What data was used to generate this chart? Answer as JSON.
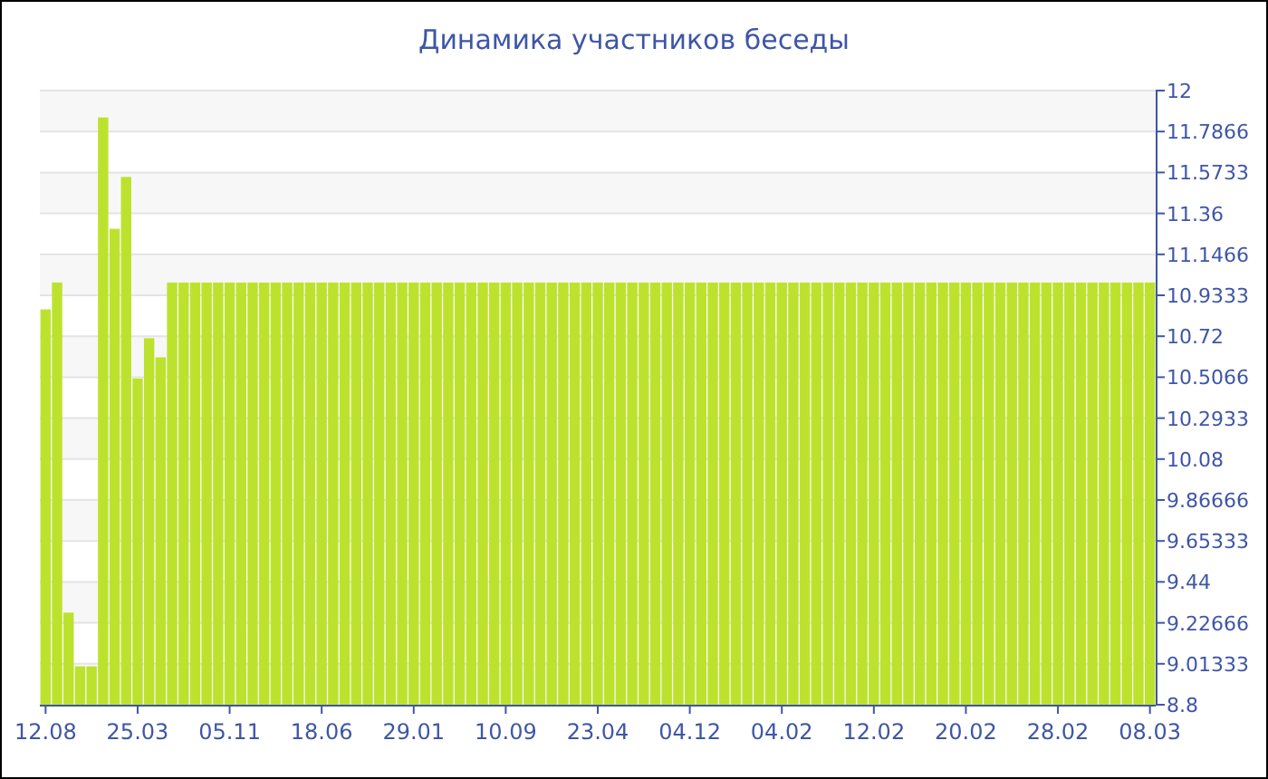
{
  "chart_data": {
    "type": "bar",
    "title": "Динамика участников беседы",
    "categories": [
      "12.08",
      null,
      null,
      null,
      null,
      null,
      null,
      null,
      "25.03",
      null,
      null,
      null,
      null,
      null,
      null,
      null,
      "05.11",
      null,
      null,
      null,
      null,
      null,
      null,
      null,
      "18.06",
      null,
      null,
      null,
      null,
      null,
      null,
      null,
      "29.01",
      null,
      null,
      null,
      null,
      null,
      null,
      null,
      "10.09",
      null,
      null,
      null,
      null,
      null,
      null,
      null,
      "23.04",
      null,
      null,
      null,
      null,
      null,
      null,
      null,
      "04.12",
      null,
      null,
      null,
      null,
      null,
      null,
      null,
      "04.02",
      null,
      null,
      null,
      null,
      null,
      null,
      null,
      "12.02",
      null,
      null,
      null,
      null,
      null,
      null,
      null,
      "20.02",
      null,
      null,
      null,
      null,
      null,
      null,
      null,
      "28.02",
      null,
      null,
      null,
      null,
      null,
      null,
      null,
      "08.03"
    ],
    "values": [
      10.86,
      11,
      9.28,
      9,
      9,
      11.86,
      11.28,
      11.55,
      10.5,
      10.71,
      10.61,
      11,
      11,
      11,
      11,
      11,
      11,
      11,
      11,
      11,
      11,
      11,
      11,
      11,
      11,
      11,
      11,
      11,
      11,
      11,
      11,
      11,
      11,
      11,
      11,
      11,
      11,
      11,
      11,
      11,
      11,
      11,
      11,
      11,
      11,
      11,
      11,
      11,
      11,
      11,
      11,
      11,
      11,
      11,
      11,
      11,
      11,
      11,
      11,
      11,
      11,
      11,
      11,
      11,
      11,
      11,
      11,
      11,
      11,
      11,
      11,
      11,
      11,
      11,
      11,
      11,
      11,
      11,
      11,
      11,
      11,
      11,
      11,
      11,
      11,
      11,
      11,
      11,
      11,
      11,
      11,
      11,
      11,
      11,
      11,
      11,
      11
    ],
    "color": "#bde22e",
    "ylim": [
      8.8,
      12
    ],
    "yticks": [
      8.8,
      9.01333,
      9.22666,
      9.44,
      9.65333,
      9.86666,
      10.08,
      10.2933,
      10.5066,
      10.72,
      10.9333,
      11.1466,
      11.36,
      11.5733,
      11.7866,
      12
    ],
    "grid": "y"
  }
}
